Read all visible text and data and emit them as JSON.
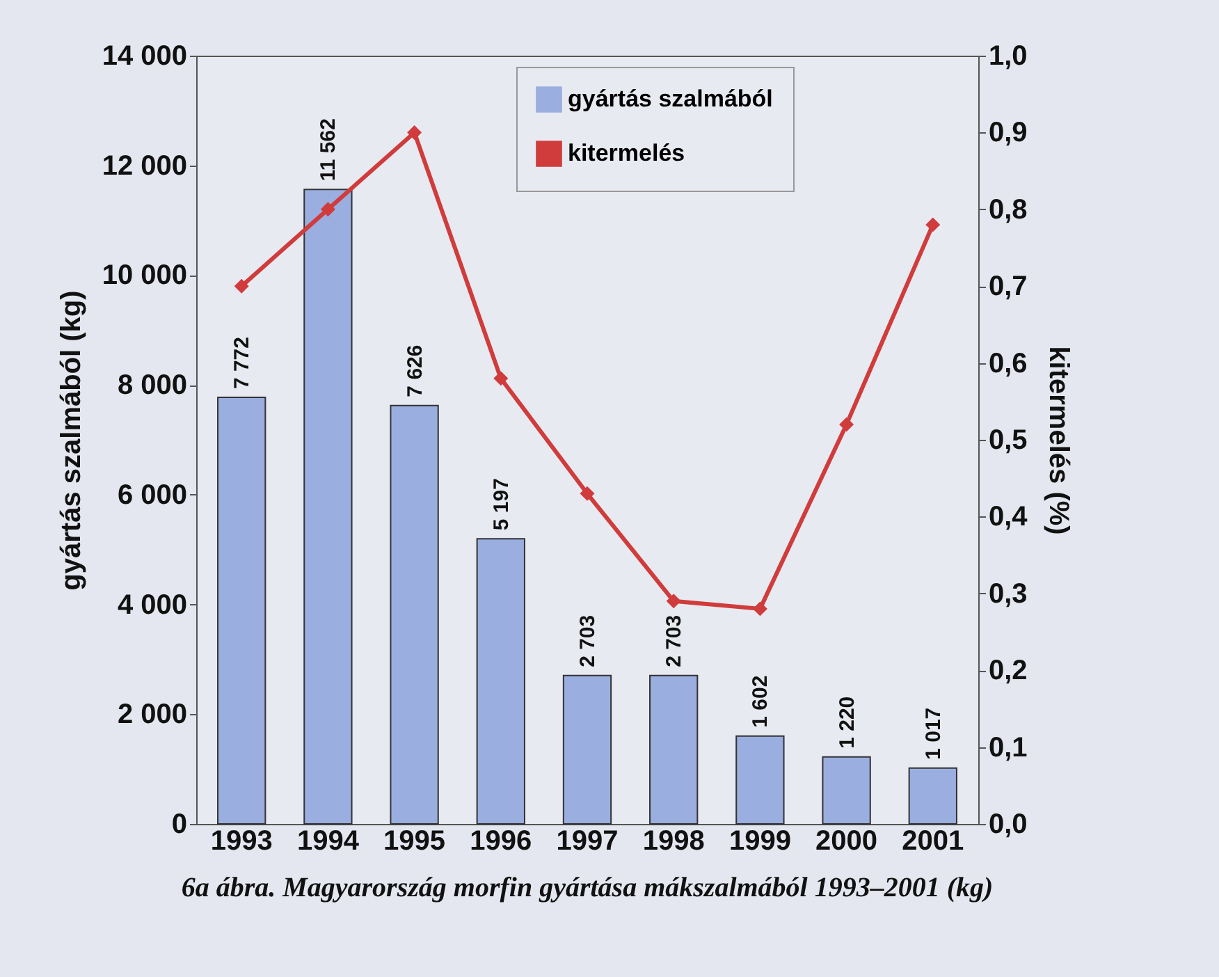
{
  "chart_data": {
    "type": "bar",
    "categories": [
      "1993",
      "1994",
      "1995",
      "1996",
      "1997",
      "1998",
      "1999",
      "2000",
      "2001"
    ],
    "ylabel": "gyártás szalmából (kg)",
    "y2label": "kitermelés (%)",
    "series": [
      {
        "name": "gyártás szalmából",
        "color": "#9aaee0",
        "values": [
          7772,
          11562,
          7626,
          5197,
          2703,
          2703,
          1602,
          1220,
          1017
        ],
        "value_labels": [
          "7 772",
          "11 562",
          "7 626",
          "5 197",
          "2 703",
          "2 703",
          "1 602",
          "1 220",
          "1 017"
        ]
      },
      {
        "name": "kitermelés",
        "type": "line",
        "axis": "y2",
        "color": "#d03c3c",
        "marker": "diamond",
        "values": [
          0.7,
          0.8,
          0.9,
          0.58,
          0.43,
          0.29,
          0.28,
          0.52,
          0.78
        ]
      }
    ],
    "ylim": [
      0,
      14000
    ],
    "yticks": [
      0,
      {
        "value": 2000,
        "label": "2 000"
      },
      {
        "value": 4000,
        "label": "4 000"
      },
      {
        "value": 6000,
        "label": "6 000"
      },
      {
        "value": 8000,
        "label": "8 000"
      },
      {
        "value": 10000,
        "label": "10 000"
      },
      {
        "value": 12000,
        "label": "12 000"
      },
      {
        "value": 14000,
        "label": "14 000"
      }
    ],
    "y2lim": [
      0,
      1
    ],
    "y2ticks": [
      {
        "value": 0,
        "label": "0,0"
      },
      {
        "value": 0.1,
        "label": "0,1"
      },
      {
        "value": 0.2,
        "label": "0,2"
      },
      {
        "value": 0.3,
        "label": "0,3"
      },
      {
        "value": 0.4,
        "label": "0,4"
      },
      {
        "value": 0.5,
        "label": "0,5"
      },
      {
        "value": 0.6,
        "label": "0,6"
      },
      {
        "value": 0.7,
        "label": "0,7"
      },
      {
        "value": 0.8,
        "label": "0,8"
      },
      {
        "value": 0.9,
        "label": "0,9"
      },
      {
        "value": 1,
        "label": "1,0"
      }
    ],
    "legend": "top right",
    "grid": false,
    "annotations": [
      "6a ábra. Magyarország morfin gyártása mákszalmából 1993–2001 (kg)"
    ]
  }
}
